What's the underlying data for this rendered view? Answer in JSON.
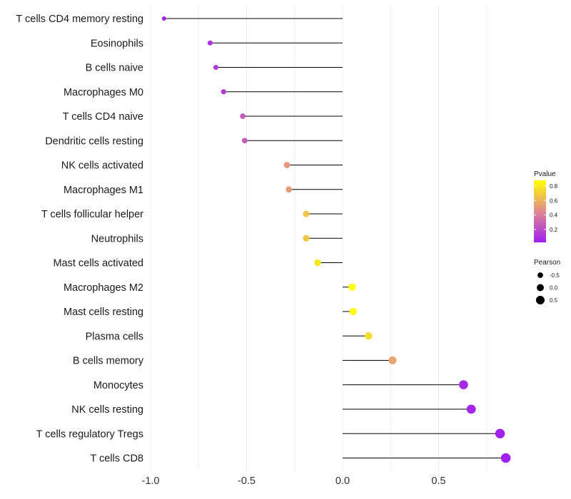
{
  "chart_data": {
    "type": "lollipop",
    "title": "",
    "xlabel": "",
    "ylabel": "",
    "xlim": [
      -1.0,
      0.87
    ],
    "x_ticks": [
      -1.0,
      -0.5,
      0.0,
      0.5
    ],
    "x_tick_labels": [
      "-1.0",
      "-0.5",
      "0.0",
      "0.5"
    ],
    "baseline": 0.0,
    "grid": true,
    "categories": [
      "T cells CD4 memory resting",
      "Eosinophils",
      "B cells naive",
      "Macrophages M0",
      "T cells CD4 naive",
      "Dendritic cells resting",
      "NK cells activated",
      "Macrophages M1",
      "T cells follicular helper",
      "Neutrophils",
      "Mast cells activated",
      "Macrophages M2",
      "Mast cells resting",
      "Plasma cells",
      "B cells memory",
      "Monocytes",
      "NK cells resting",
      "T cells regulatory  Tregs",
      "T cells CD8"
    ],
    "pearson": [
      -0.93,
      -0.69,
      -0.66,
      -0.62,
      -0.52,
      -0.51,
      -0.29,
      -0.28,
      -0.19,
      -0.19,
      -0.13,
      0.05,
      0.055,
      0.135,
      0.26,
      0.63,
      0.67,
      0.82,
      0.85
    ],
    "pvalue": [
      0.02,
      0.1,
      0.12,
      0.14,
      0.25,
      0.26,
      0.5,
      0.52,
      0.67,
      0.67,
      0.78,
      0.88,
      0.88,
      0.75,
      0.55,
      0.06,
      0.05,
      0.03,
      0.02
    ],
    "legend": {
      "placement": "right",
      "color": {
        "title": "Pvalue",
        "ticks": [
          "0.8",
          "0.6",
          "0.4",
          "0.2"
        ],
        "tick_values": [
          0.8,
          0.6,
          0.4,
          0.2
        ],
        "range": [
          0.02,
          0.88
        ],
        "low_color": "#a020f0",
        "high_color": "#ffff00"
      },
      "size": {
        "title": "Pearson",
        "labels": [
          "-0.5",
          "0.0",
          "0.5"
        ],
        "values": [
          -0.5,
          0.0,
          0.5
        ]
      }
    }
  }
}
